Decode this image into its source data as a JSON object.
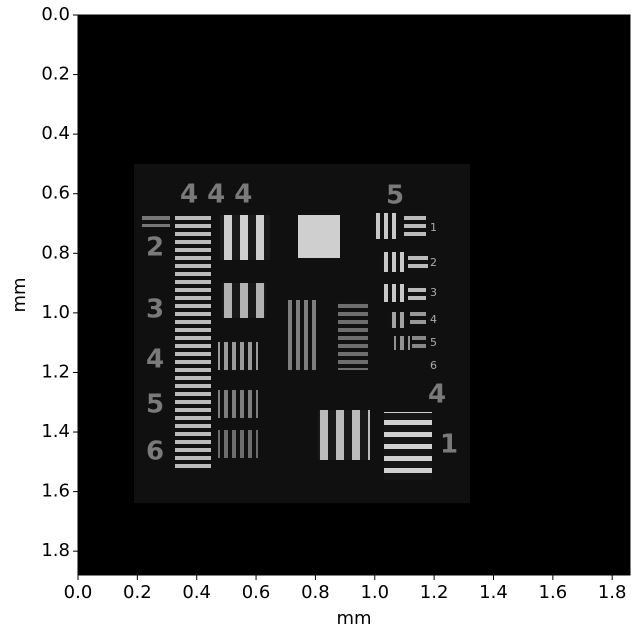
{
  "chart_data": {
    "type": "image",
    "xlabel": "mm",
    "ylabel": "mm",
    "xlim": [
      0,
      1.86
    ],
    "ylim": [
      1.88,
      0
    ],
    "xticks": [
      {
        "value": 0,
        "label": "0.0"
      },
      0.2,
      0.4,
      0.6,
      0.8,
      {
        "value": 1,
        "label": "1.0"
      },
      1.2,
      1.4,
      1.6,
      1.8
    ],
    "yticks": [
      {
        "value": 0,
        "label": "0.0"
      },
      0.2,
      0.4,
      0.6,
      0.8,
      {
        "value": 1,
        "label": "1.0"
      },
      1.2,
      1.4,
      1.6,
      1.8
    ]
  }
}
